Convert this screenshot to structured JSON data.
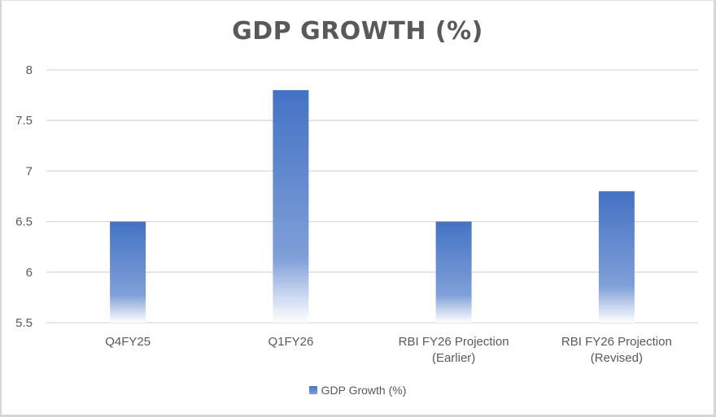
{
  "chart_data": {
    "type": "bar",
    "title": "GDP GROWTH (%)",
    "xlabel": "",
    "ylabel": "",
    "categories": [
      [
        "Q4FY25"
      ],
      [
        "Q1FY26"
      ],
      [
        "RBI FY26 Projection",
        "(Earlier)"
      ],
      [
        "RBI FY26 Projection",
        "(Revised)"
      ]
    ],
    "series": [
      {
        "name": "GDP Growth (%)",
        "values": [
          6.5,
          7.8,
          6.5,
          6.8
        ]
      }
    ],
    "ylim": [
      5.5,
      8
    ],
    "yticks": [
      5.5,
      6,
      6.5,
      7,
      7.5,
      8
    ],
    "ytick_labels": [
      "5.5",
      "6",
      "6.5",
      "7",
      "7.5",
      "8"
    ],
    "grid": true,
    "legend_position": "bottom",
    "colors": {
      "bar_top": "#4472c4",
      "bar_mid": "#7f9fd8",
      "bar_bottom": "#ffffff",
      "grid": "#d9d9d9",
      "text": "#595959"
    }
  },
  "legend": {
    "label": "GDP Growth (%)"
  }
}
